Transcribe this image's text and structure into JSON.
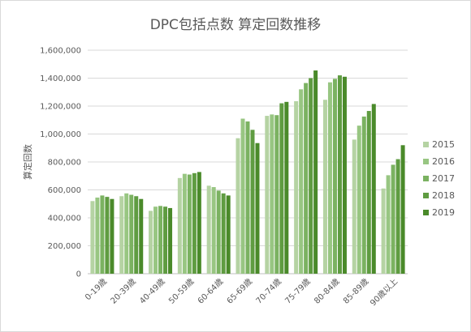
{
  "chart_data": {
    "type": "bar",
    "title": "DPC包括点数 算定回数推移",
    "xlabel": "",
    "ylabel": "算定回数",
    "ylim": [
      0,
      1600000
    ],
    "yticks": [
      "0",
      "200,000",
      "400,000",
      "600,000",
      "800,000",
      "1,000,000",
      "1,200,000",
      "1,400,000",
      "1,600,000"
    ],
    "categories": [
      "0-19歳",
      "20-39歳",
      "40-49歳",
      "50-59歳",
      "60-64歳",
      "65-69歳",
      "70-74歳",
      "75-79歳",
      "80-84歳",
      "85-89歳",
      "90歳以上"
    ],
    "series": [
      {
        "name": "2015",
        "color": "#b5d3a3",
        "values": [
          520000,
          555000,
          450000,
          685000,
          630000,
          970000,
          1130000,
          1235000,
          1245000,
          960000,
          610000
        ]
      },
      {
        "name": "2016",
        "color": "#98c682",
        "values": [
          545000,
          575000,
          480000,
          715000,
          620000,
          1110000,
          1140000,
          1320000,
          1370000,
          1060000,
          705000
        ]
      },
      {
        "name": "2017",
        "color": "#7bb261",
        "values": [
          560000,
          565000,
          485000,
          710000,
          595000,
          1090000,
          1135000,
          1365000,
          1395000,
          1125000,
          780000
        ]
      },
      {
        "name": "2018",
        "color": "#5f9c41",
        "values": [
          550000,
          555000,
          480000,
          720000,
          575000,
          1030000,
          1220000,
          1400000,
          1420000,
          1165000,
          820000
        ]
      },
      {
        "name": "2019",
        "color": "#4a8a2a",
        "values": [
          535000,
          535000,
          470000,
          728000,
          560000,
          935000,
          1230000,
          1455000,
          1410000,
          1215000,
          920000
        ]
      }
    ],
    "grid": true,
    "legend": "right"
  }
}
